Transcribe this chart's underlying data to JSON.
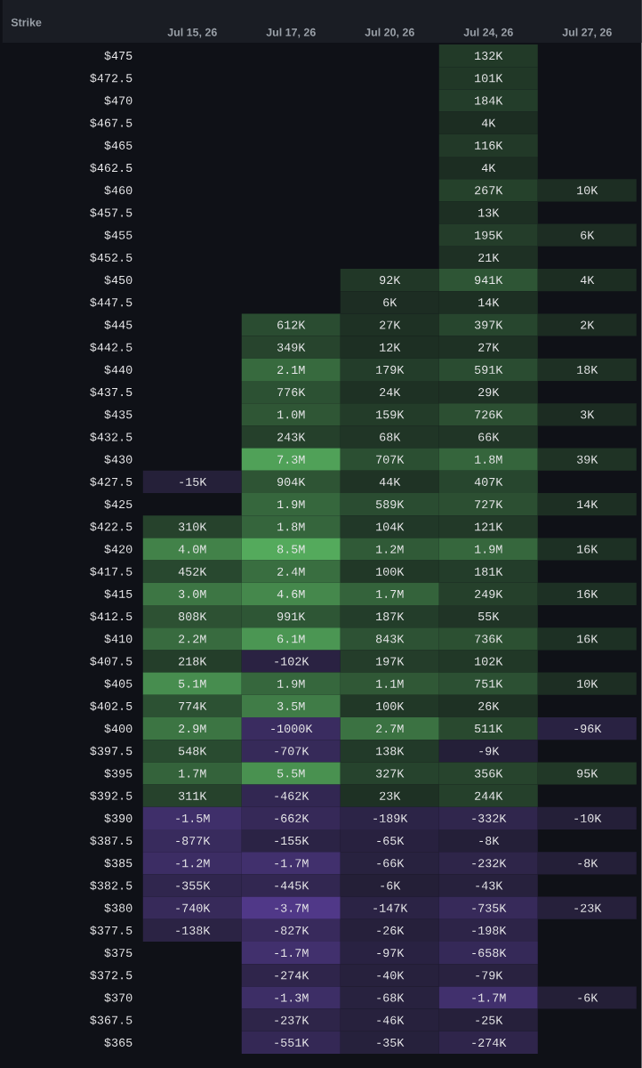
{
  "chart_data": {
    "type": "heatmap",
    "ylabel": "Strike",
    "categories": [
      "Jul 15, 26",
      "Jul 17, 26",
      "Jul 20, 26",
      "Jul 24, 26",
      "Jul 27, 26"
    ],
    "y_categories": [
      "$475",
      "$472.5",
      "$470",
      "$467.5",
      "$465",
      "$462.5",
      "$460",
      "$457.5",
      "$455",
      "$452.5",
      "$450",
      "$447.5",
      "$445",
      "$442.5",
      "$440",
      "$437.5",
      "$435",
      "$432.5",
      "$430",
      "$427.5",
      "$425",
      "$422.5",
      "$420",
      "$417.5",
      "$415",
      "$412.5",
      "$410",
      "$407.5",
      "$405",
      "$402.5",
      "$400",
      "$397.5",
      "$395",
      "$392.5",
      "$390",
      "$387.5",
      "$385",
      "$382.5",
      "$380",
      "$377.5",
      "$375",
      "$372.5",
      "$370",
      "$367.5",
      "$365"
    ],
    "cells": [
      [
        null,
        null,
        null,
        132000,
        null
      ],
      [
        null,
        null,
        null,
        101000,
        null
      ],
      [
        null,
        null,
        null,
        184000,
        null
      ],
      [
        null,
        null,
        null,
        4000,
        null
      ],
      [
        null,
        null,
        null,
        116000,
        null
      ],
      [
        null,
        null,
        null,
        4000,
        null
      ],
      [
        null,
        null,
        null,
        267000,
        10000
      ],
      [
        null,
        null,
        null,
        13000,
        null
      ],
      [
        null,
        null,
        null,
        195000,
        6000
      ],
      [
        null,
        null,
        null,
        21000,
        null
      ],
      [
        null,
        null,
        92000,
        941000,
        4000
      ],
      [
        null,
        null,
        6000,
        14000,
        null
      ],
      [
        null,
        612000,
        27000,
        397000,
        2000
      ],
      [
        null,
        349000,
        12000,
        27000,
        null
      ],
      [
        null,
        2100000,
        179000,
        591000,
        18000
      ],
      [
        null,
        776000,
        24000,
        29000,
        null
      ],
      [
        null,
        1000000,
        159000,
        726000,
        3000
      ],
      [
        null,
        243000,
        68000,
        66000,
        null
      ],
      [
        null,
        7300000,
        707000,
        1800000,
        39000
      ],
      [
        -15000,
        904000,
        44000,
        407000,
        null
      ],
      [
        null,
        1900000,
        589000,
        727000,
        14000
      ],
      [
        310000,
        1800000,
        104000,
        121000,
        null
      ],
      [
        4000000,
        8500000,
        1200000,
        1900000,
        16000
      ],
      [
        452000,
        2400000,
        100000,
        181000,
        null
      ],
      [
        3000000,
        4600000,
        1700000,
        249000,
        16000
      ],
      [
        808000,
        991000,
        187000,
        55000,
        null
      ],
      [
        2200000,
        6100000,
        843000,
        736000,
        16000
      ],
      [
        218000,
        -102000,
        197000,
        102000,
        null
      ],
      [
        5100000,
        1900000,
        1100000,
        751000,
        10000
      ],
      [
        774000,
        3500000,
        100000,
        26000,
        null
      ],
      [
        2900000,
        -1000000,
        2700000,
        511000,
        -96000
      ],
      [
        548000,
        -707000,
        138000,
        -9000,
        null
      ],
      [
        1700000,
        5500000,
        327000,
        356000,
        95000
      ],
      [
        311000,
        -462000,
        23000,
        244000,
        null
      ],
      [
        -1500000,
        -662000,
        -189000,
        -332000,
        -10000
      ],
      [
        -877000,
        -155000,
        -65000,
        -8000,
        null
      ],
      [
        -1200000,
        -1700000,
        -66000,
        -232000,
        -8000
      ],
      [
        -355000,
        -445000,
        -6000,
        -43000,
        null
      ],
      [
        -740000,
        -3700000,
        -147000,
        -735000,
        -23000
      ],
      [
        -138000,
        -827000,
        -26000,
        -198000,
        null
      ],
      [
        null,
        -1700000,
        -97000,
        -658000,
        null
      ],
      [
        null,
        -274000,
        -40000,
        -79000,
        null
      ],
      [
        null,
        -1300000,
        -68000,
        -1700000,
        -6000
      ],
      [
        null,
        -237000,
        -46000,
        -25000,
        null
      ],
      [
        null,
        -551000,
        -35000,
        -274000,
        null
      ]
    ],
    "cell_labels": [
      [
        null,
        null,
        null,
        "132K",
        null
      ],
      [
        null,
        null,
        null,
        "101K",
        null
      ],
      [
        null,
        null,
        null,
        "184K",
        null
      ],
      [
        null,
        null,
        null,
        "4K",
        null
      ],
      [
        null,
        null,
        null,
        "116K",
        null
      ],
      [
        null,
        null,
        null,
        "4K",
        null
      ],
      [
        null,
        null,
        null,
        "267K",
        "10K"
      ],
      [
        null,
        null,
        null,
        "13K",
        null
      ],
      [
        null,
        null,
        null,
        "195K",
        "6K"
      ],
      [
        null,
        null,
        null,
        "21K",
        null
      ],
      [
        null,
        null,
        "92K",
        "941K",
        "4K"
      ],
      [
        null,
        null,
        "6K",
        "14K",
        null
      ],
      [
        null,
        "612K",
        "27K",
        "397K",
        "2K"
      ],
      [
        null,
        "349K",
        "12K",
        "27K",
        null
      ],
      [
        null,
        "2.1M",
        "179K",
        "591K",
        "18K"
      ],
      [
        null,
        "776K",
        "24K",
        "29K",
        null
      ],
      [
        null,
        "1.0M",
        "159K",
        "726K",
        "3K"
      ],
      [
        null,
        "243K",
        "68K",
        "66K",
        null
      ],
      [
        null,
        "7.3M",
        "707K",
        "1.8M",
        "39K"
      ],
      [
        "-15K",
        "904K",
        "44K",
        "407K",
        null
      ],
      [
        null,
        "1.9M",
        "589K",
        "727K",
        "14K"
      ],
      [
        "310K",
        "1.8M",
        "104K",
        "121K",
        null
      ],
      [
        "4.0M",
        "8.5M",
        "1.2M",
        "1.9M",
        "16K"
      ],
      [
        "452K",
        "2.4M",
        "100K",
        "181K",
        null
      ],
      [
        "3.0M",
        "4.6M",
        "1.7M",
        "249K",
        "16K"
      ],
      [
        "808K",
        "991K",
        "187K",
        "55K",
        null
      ],
      [
        "2.2M",
        "6.1M",
        "843K",
        "736K",
        "16K"
      ],
      [
        "218K",
        "-102K",
        "197K",
        "102K",
        null
      ],
      [
        "5.1M",
        "1.9M",
        "1.1M",
        "751K",
        "10K"
      ],
      [
        "774K",
        "3.5M",
        "100K",
        "26K",
        null
      ],
      [
        "2.9M",
        "-1000K",
        "2.7M",
        "511K",
        "-96K"
      ],
      [
        "548K",
        "-707K",
        "138K",
        "-9K",
        null
      ],
      [
        "1.7M",
        "5.5M",
        "327K",
        "356K",
        "95K"
      ],
      [
        "311K",
        "-462K",
        "23K",
        "244K",
        null
      ],
      [
        "-1.5M",
        "-662K",
        "-189K",
        "-332K",
        "-10K"
      ],
      [
        "-877K",
        "-155K",
        "-65K",
        "-8K",
        null
      ],
      [
        "-1.2M",
        "-1.7M",
        "-66K",
        "-232K",
        "-8K"
      ],
      [
        "-355K",
        "-445K",
        "-6K",
        "-43K",
        null
      ],
      [
        "-740K",
        "-3.7M",
        "-147K",
        "-735K",
        "-23K"
      ],
      [
        "-138K",
        "-827K",
        "-26K",
        "-198K",
        null
      ],
      [
        null,
        "-1.7M",
        "-97K",
        "-658K",
        null
      ],
      [
        null,
        "-274K",
        "-40K",
        "-79K",
        null
      ],
      [
        null,
        "-1.3M",
        "-68K",
        "-1.7M",
        "-6K"
      ],
      [
        null,
        "-237K",
        "-46K",
        "-25K",
        null
      ],
      [
        null,
        "-551K",
        "-35K",
        "-274K",
        null
      ]
    ]
  }
}
